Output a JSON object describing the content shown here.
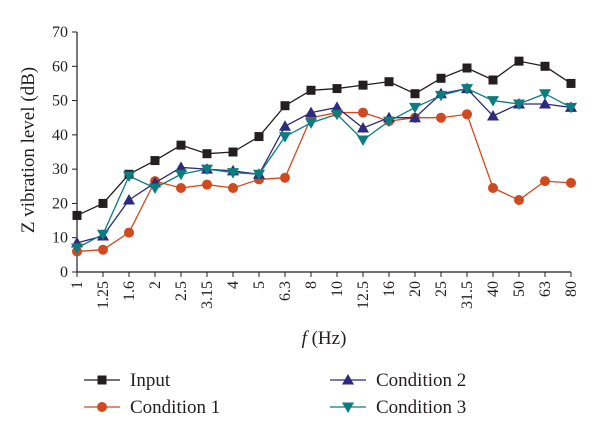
{
  "chart_data": {
    "type": "line",
    "title": "",
    "xlabel_italic": "f",
    "xlabel_rest": " (Hz)",
    "ylabel": "Z vibration level (dB)",
    "ylim": [
      0,
      70
    ],
    "yticks": [
      0,
      10,
      20,
      30,
      40,
      50,
      60,
      70
    ],
    "grid": false,
    "legend_position": "bottom",
    "categories": [
      "1",
      "1.25",
      "1.6",
      "2",
      "2.5",
      "3.15",
      "4",
      "5",
      "6.3",
      "8",
      "10",
      "12.5",
      "16",
      "20",
      "25",
      "31.5",
      "40",
      "50",
      "63",
      "80"
    ],
    "series": [
      {
        "name": "Input",
        "color": "#231f20",
        "marker": "square",
        "values": [
          16.5,
          20,
          28.5,
          32.5,
          37,
          34.5,
          35,
          39.5,
          48.5,
          53,
          53.5,
          54.5,
          55.5,
          52,
          56.5,
          59.5,
          56,
          61.5,
          60,
          55
        ]
      },
      {
        "name": "Condition 1",
        "color": "#d1491e",
        "marker": "circle",
        "values": [
          6,
          6.5,
          11.5,
          26.5,
          24.5,
          25.5,
          24.5,
          27,
          27.5,
          45,
          46.5,
          46.5,
          44,
          45,
          45,
          46,
          24.5,
          21,
          26.5,
          26
        ]
      },
      {
        "name": "Condition 2",
        "color": "#2e2a7c",
        "marker": "triangle-up",
        "values": [
          8.5,
          10.5,
          21,
          26,
          30.5,
          30,
          29.5,
          28.5,
          42.5,
          46.5,
          48,
          42,
          45,
          45,
          52,
          53.5,
          45.5,
          49,
          49,
          48
        ]
      },
      {
        "name": "Condition 3",
        "color": "#0b7d7e",
        "marker": "triangle-down",
        "values": [
          7,
          11,
          28,
          24.5,
          28.5,
          30,
          29,
          28.5,
          39.5,
          43.5,
          46,
          38.5,
          44,
          48,
          51.5,
          53.5,
          50,
          49,
          52,
          48
        ]
      }
    ]
  }
}
